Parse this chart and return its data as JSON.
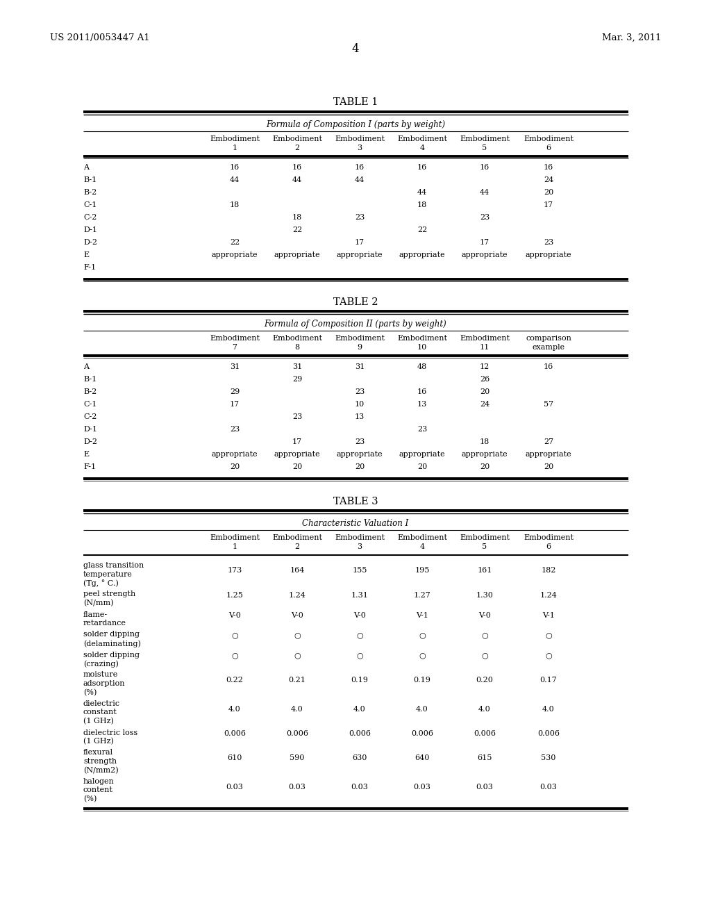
{
  "header_left": "US 2011/0053447 A1",
  "header_right": "Mar. 3, 2011",
  "page_number": "4",
  "table1_title": "TABLE 1",
  "table1_subtitle": "Formula of Composition I (parts by weight)",
  "table1_col_headers_line1": [
    "",
    "Embodiment",
    "Embodiment",
    "Embodiment",
    "Embodiment",
    "Embodiment",
    "Embodiment"
  ],
  "table1_col_headers_line2": [
    "",
    "1",
    "2",
    "3",
    "4",
    "5",
    "6"
  ],
  "table1_rows": [
    [
      "A",
      "16",
      "16",
      "16",
      "16",
      "16",
      "16"
    ],
    [
      "B-1",
      "44",
      "44",
      "44",
      "",
      "",
      "24"
    ],
    [
      "B-2",
      "",
      "",
      "",
      "44",
      "44",
      "20"
    ],
    [
      "C-1",
      "18",
      "",
      "",
      "18",
      "",
      "17"
    ],
    [
      "C-2",
      "",
      "18",
      "23",
      "",
      "23",
      ""
    ],
    [
      "D-1",
      "",
      "22",
      "",
      "22",
      "",
      ""
    ],
    [
      "D-2",
      "22",
      "",
      "17",
      "",
      "17",
      "23"
    ],
    [
      "E",
      "appropriate",
      "appropriate",
      "appropriate",
      "appropriate",
      "appropriate",
      "appropriate"
    ],
    [
      "F-1",
      "",
      "",
      "",
      "",
      "",
      ""
    ]
  ],
  "table2_title": "TABLE 2",
  "table2_subtitle": "Formula of Composition II (parts by weight)",
  "table2_col_headers_line1": [
    "",
    "Embodiment",
    "Embodiment",
    "Embodiment",
    "Embodiment",
    "Embodiment",
    "comparison"
  ],
  "table2_col_headers_line2": [
    "",
    "7",
    "8",
    "9",
    "10",
    "11",
    "example"
  ],
  "table2_rows": [
    [
      "A",
      "31",
      "31",
      "31",
      "48",
      "12",
      "16"
    ],
    [
      "B-1",
      "",
      "29",
      "",
      "",
      "26",
      ""
    ],
    [
      "B-2",
      "29",
      "",
      "23",
      "16",
      "20",
      ""
    ],
    [
      "C-1",
      "17",
      "",
      "10",
      "13",
      "24",
      "57"
    ],
    [
      "C-2",
      "",
      "23",
      "13",
      "",
      "",
      ""
    ],
    [
      "D-1",
      "23",
      "",
      "",
      "23",
      "",
      ""
    ],
    [
      "D-2",
      "",
      "17",
      "23",
      "",
      "18",
      "27"
    ],
    [
      "E",
      "appropriate",
      "appropriate",
      "appropriate",
      "appropriate",
      "appropriate",
      "appropriate"
    ],
    [
      "F-1",
      "20",
      "20",
      "20",
      "20",
      "20",
      "20"
    ]
  ],
  "table3_title": "TABLE 3",
  "table3_subtitle": "Characteristic Valuation I",
  "table3_col_headers_line1": [
    "",
    "Embodiment",
    "Embodiment",
    "Embodiment",
    "Embodiment",
    "Embodiment",
    "Embodiment"
  ],
  "table3_col_headers_line2": [
    "",
    "1",
    "2",
    "3",
    "4",
    "5",
    "6"
  ],
  "table3_row_labels": [
    [
      "glass transition",
      "temperature",
      "(Tg, ° C.)"
    ],
    [
      "peel strength",
      "(N/mm)"
    ],
    [
      "flame-",
      "retardance"
    ],
    [
      "solder dipping",
      "(delaminating)"
    ],
    [
      "solder dipping",
      "(crazing)"
    ],
    [
      "moisture",
      "adsorption",
      "(%)"
    ],
    [
      "dielectric",
      "constant",
      "(1 GHz)"
    ],
    [
      "dielectric loss",
      "(1 GHz)"
    ],
    [
      "flexural",
      "strength",
      "(N/mm2)"
    ],
    [
      "halogen",
      "content",
      "(%)"
    ]
  ],
  "table3_data": [
    [
      "173",
      "164",
      "155",
      "195",
      "161",
      "182"
    ],
    [
      "1.25",
      "1.24",
      "1.31",
      "1.27",
      "1.30",
      "1.24"
    ],
    [
      "V-0",
      "V-0",
      "V-0",
      "V-1",
      "V-0",
      "V-1"
    ],
    [
      "○",
      "○",
      "○",
      "○",
      "○",
      "○"
    ],
    [
      "○",
      "○",
      "○",
      "○",
      "○",
      "○"
    ],
    [
      "0.22",
      "0.21",
      "0.19",
      "0.19",
      "0.20",
      "0.17"
    ],
    [
      "4.0",
      "4.0",
      "4.0",
      "4.0",
      "4.0",
      "4.0"
    ],
    [
      "0.006",
      "0.006",
      "0.006",
      "0.006",
      "0.006",
      "0.006"
    ],
    [
      "610",
      "590",
      "630",
      "640",
      "615",
      "530"
    ],
    [
      "0.03",
      "0.03",
      "0.03",
      "0.03",
      "0.03",
      "0.03"
    ]
  ],
  "bg_color": "#ffffff",
  "text_color": "#000000",
  "line_color": "#000000"
}
